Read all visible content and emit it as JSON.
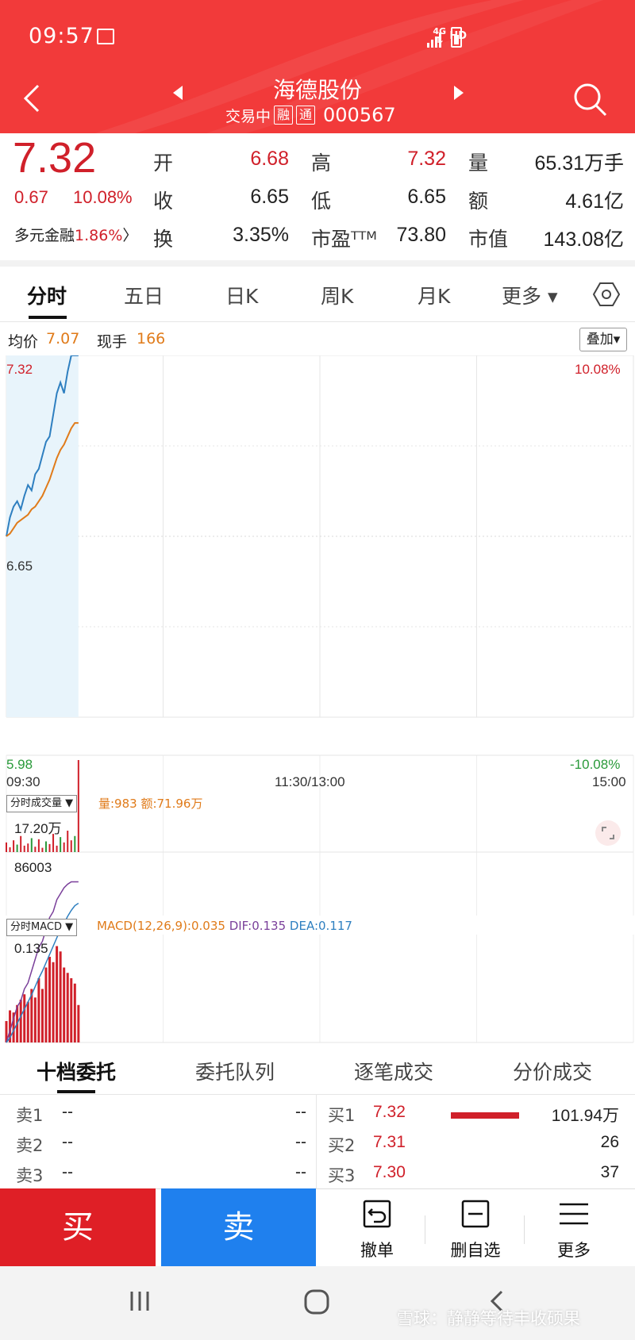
{
  "status_bar": {
    "time": "09:57",
    "hd": "HD",
    "network": "4G"
  },
  "header": {
    "stock_name": "海德股份",
    "trade_status": "交易中",
    "tag_margin": "融",
    "tag_connect": "通",
    "stock_code": "000567"
  },
  "quote": {
    "price": "7.32",
    "change": "0.67",
    "change_pct": "10.08%",
    "sector_name": "多元金融",
    "sector_pct": "1.86%",
    "sector_arrow": "〉",
    "open_label": "开",
    "open": "6.68",
    "high_label": "高",
    "high": "7.32",
    "volume_label": "量",
    "volume": "65.31万手",
    "prev_close_label": "收",
    "prev_close": "6.65",
    "low_label": "低",
    "low": "6.65",
    "amount_label": "额",
    "amount": "4.61亿",
    "turnover_label": "换",
    "turnover": "3.35%",
    "pe_label": "市盈ᵀᵀᴹ",
    "pe": "73.80",
    "mktcap_label": "市值",
    "mktcap": "143.08亿"
  },
  "tabs": [
    "分时",
    "五日",
    "日K",
    "周K",
    "月K",
    "更多 ▾"
  ],
  "avg_row": {
    "avg_label": "均价",
    "avg_value": "7.07",
    "lot_label": "现手",
    "lot_value": "166",
    "overlay_btn": "叠加▾"
  },
  "chart": {
    "y_top": "7.32",
    "y_mid": "6.65",
    "y_bottom": "5.98",
    "pct_top": "10.08%",
    "pct_bottom": "-10.08%",
    "x_start": "09:30",
    "x_mid": "11:30/13:00",
    "x_end": "15:00",
    "volume_selector": "分时成交量 ▼",
    "volume_info": "量:983 额:71.96万",
    "vol_max_label": "17.20万",
    "vol_mid_label": "86003",
    "macd_selector": "分时MACD ▼",
    "macd_info": "MACD(12,26,9):0.035",
    "dif_info": "DIF:0.135",
    "dea_info": "DEA:0.117",
    "macd_top_label": "0.135",
    "colors": {
      "price_line": "#2e7fc0",
      "avg_line": "#e07b1a",
      "up": "#d0202a",
      "down": "#2a9a3a",
      "macd_dif": "#7a3f9a",
      "macd_dea": "#2e7fc0"
    }
  },
  "chart_data": {
    "type": "line",
    "x_range": [
      "09:30",
      "15:00"
    ],
    "ylim": [
      5.98,
      7.32
    ],
    "series": [],
    "price_points": [
      6.65,
      6.72,
      6.76,
      6.78,
      6.75,
      6.8,
      6.84,
      6.82,
      6.88,
      6.9,
      6.95,
      7.0,
      7.02,
      7.1,
      7.18,
      7.22,
      7.18,
      7.26,
      7.32,
      7.32,
      7.32
    ],
    "avg_points": [
      6.65,
      6.66,
      6.68,
      6.7,
      6.71,
      6.72,
      6.73,
      6.75,
      6.76,
      6.78,
      6.8,
      6.83,
      6.86,
      6.9,
      6.94,
      6.97,
      6.99,
      7.02,
      7.05,
      7.07,
      7.07
    ],
    "volume_bars": [
      18000,
      9000,
      22000,
      14000,
      30000,
      12000,
      16000,
      26000,
      10000,
      24000,
      8000,
      20000,
      15000,
      34000,
      12000,
      28000,
      18000,
      40000,
      22000,
      30000,
      172000
    ],
    "macd_bars": [
      0.02,
      0.03,
      0.028,
      0.035,
      0.04,
      0.045,
      0.038,
      0.05,
      0.042,
      0.06,
      0.05,
      0.07,
      0.08,
      0.075,
      0.09,
      0.085,
      0.07,
      0.065,
      0.06,
      0.055,
      0.035
    ],
    "macd_dif": [
      0.0,
      0.01,
      0.02,
      0.03,
      0.035,
      0.045,
      0.05,
      0.06,
      0.07,
      0.08,
      0.085,
      0.095,
      0.105,
      0.11,
      0.12,
      0.125,
      0.13,
      0.133,
      0.135,
      0.135,
      0.135
    ],
    "macd_dea": [
      0.0,
      0.004,
      0.01,
      0.016,
      0.022,
      0.028,
      0.034,
      0.04,
      0.047,
      0.054,
      0.06,
      0.067,
      0.074,
      0.081,
      0.088,
      0.095,
      0.1,
      0.106,
      0.111,
      0.115,
      0.117
    ]
  },
  "orderbook": {
    "tabs": [
      "十档委托",
      "委托队列",
      "逐笔成交",
      "分价成交"
    ],
    "sells": [
      {
        "label": "卖1",
        "price": "--",
        "vol": "--"
      },
      {
        "label": "卖2",
        "price": "--",
        "vol": "--"
      },
      {
        "label": "卖3",
        "price": "--",
        "vol": "--"
      }
    ],
    "buys": [
      {
        "label": "买1",
        "price": "7.32",
        "vol": "101.94万"
      },
      {
        "label": "买2",
        "price": "7.31",
        "vol": "26"
      },
      {
        "label": "买3",
        "price": "7.30",
        "vol": "37"
      }
    ]
  },
  "actions": {
    "buy": "买",
    "sell": "卖",
    "cancel": "撤单",
    "remove_watch": "删自选",
    "more": "更多"
  },
  "watermark": "雪球：静静等待丰收硕果"
}
